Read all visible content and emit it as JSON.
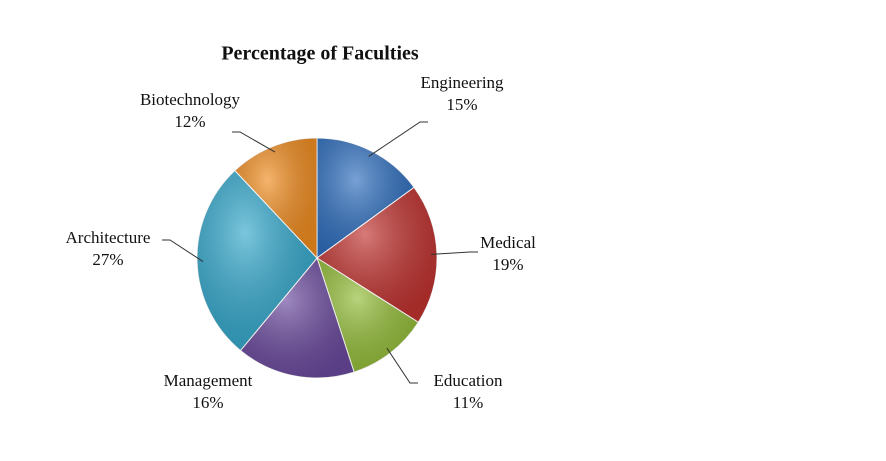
{
  "chart_data": {
    "type": "pie",
    "title": "Percentage of Faculties",
    "categories": [
      "Engineering",
      "Medical",
      "Education",
      "Management",
      "Architecture",
      "Biotechnology"
    ],
    "values": [
      15,
      19,
      11,
      16,
      27,
      12
    ],
    "value_labels": [
      "15%",
      "19%",
      "11%",
      "16%",
      "27%",
      "12%"
    ],
    "colors": [
      "#2f6fbf",
      "#c0322f",
      "#93bd37",
      "#6b4a9e",
      "#33a8cc",
      "#f08c1f"
    ]
  }
}
